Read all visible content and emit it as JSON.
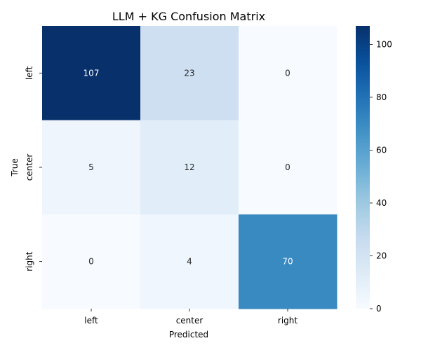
{
  "chart_data": {
    "type": "heatmap",
    "title": "LLM + KG Confusion Matrix",
    "xlabel": "Predicted",
    "ylabel": "True",
    "x_categories": [
      "left",
      "center",
      "right"
    ],
    "y_categories": [
      "left",
      "center",
      "right"
    ],
    "values": [
      [
        107,
        23,
        0
      ],
      [
        5,
        12,
        0
      ],
      [
        0,
        4,
        70
      ]
    ],
    "colormap": "Blues",
    "colorbar": {
      "min": 0,
      "max": 107,
      "ticks": [
        0,
        20,
        40,
        60,
        80,
        100
      ],
      "tick_labels": [
        "0",
        "20",
        "40",
        "60",
        "80",
        "100"
      ]
    },
    "annotate": true,
    "grid": false
  }
}
